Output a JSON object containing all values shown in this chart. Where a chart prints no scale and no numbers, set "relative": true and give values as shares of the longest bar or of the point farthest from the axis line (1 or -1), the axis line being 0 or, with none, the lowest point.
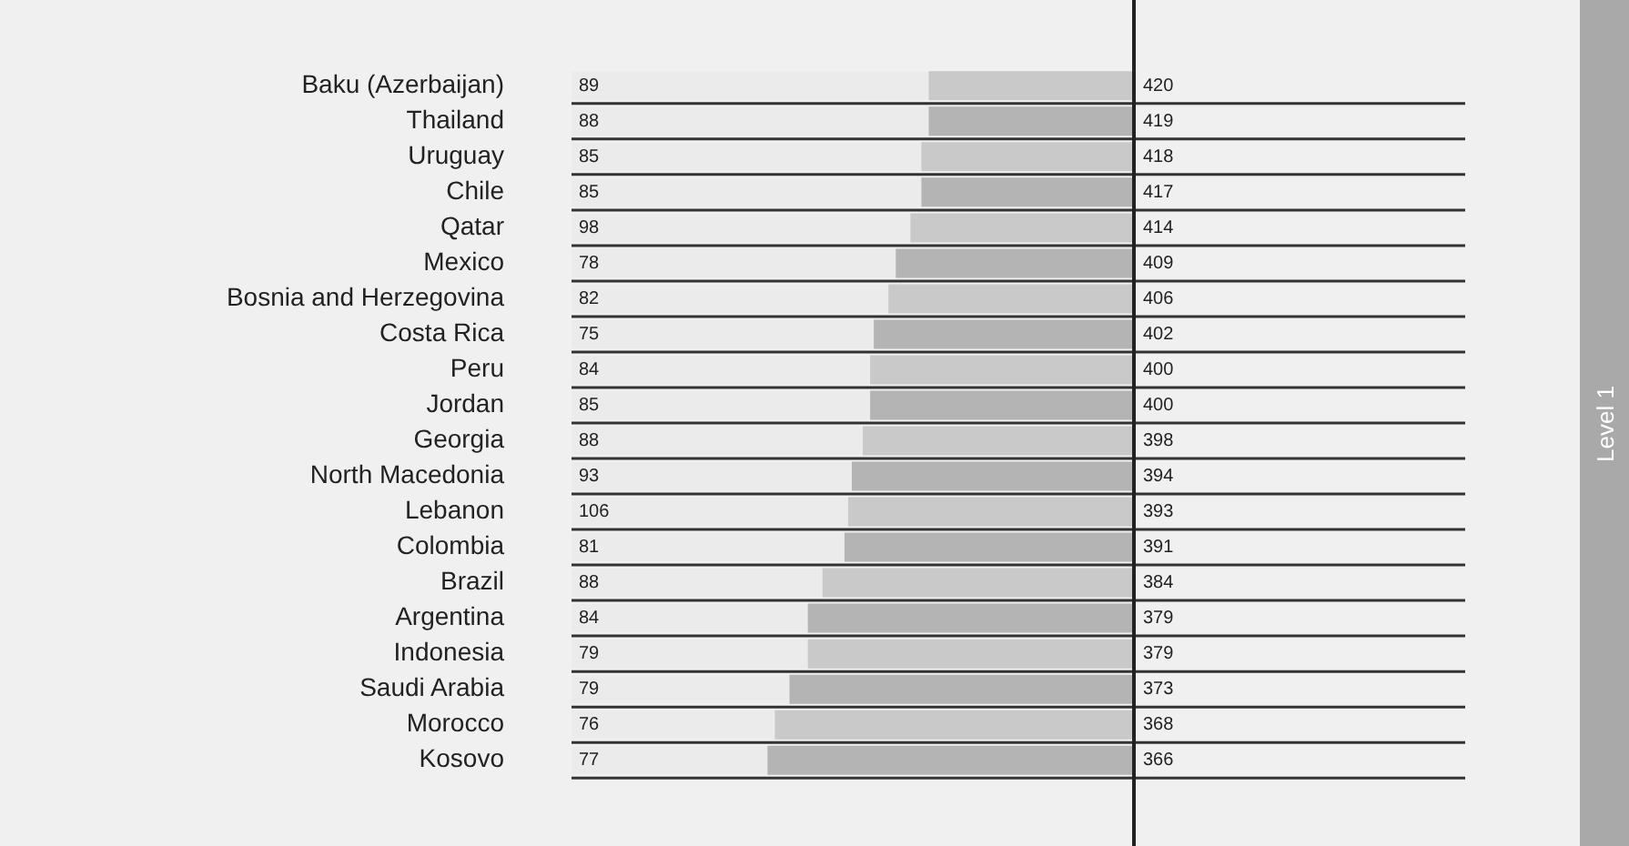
{
  "chart_data": {
    "type": "bar",
    "orientation": "horizontal",
    "relative": true,
    "categories": [
      "Baku (Azerbaijan)",
      "Thailand",
      "Uruguay",
      "Chile",
      "Qatar",
      "Mexico",
      "Bosnia and Herzegovina",
      "Costa Rica",
      "Peru",
      "Jordan",
      "Georgia",
      "North Macedonia",
      "Lebanon",
      "Colombia",
      "Brazil",
      "Argentina",
      "Indonesia",
      "Saudi Arabia",
      "Morocco",
      "Kosovo"
    ],
    "values": [
      -0.56,
      -0.56,
      -0.58,
      -0.58,
      -0.61,
      -0.65,
      -0.67,
      -0.71,
      -0.72,
      -0.72,
      -0.74,
      -0.77,
      -0.78,
      -0.79,
      -0.85,
      -0.89,
      -0.89,
      -0.94,
      -0.98,
      -1
    ],
    "colors": [
      "#c9c9c9",
      "#b4b4b4",
      "#c9c9c9",
      "#b4b4b4",
      "#c9c9c9",
      "#b4b4b4",
      "#c9c9c9",
      "#b4b4b4",
      "#c9c9c9",
      "#b4b4b4",
      "#c9c9c9",
      "#b4b4b4",
      "#c9c9c9",
      "#b4b4b4",
      "#c9c9c9",
      "#b4b4b4",
      "#c9c9c9",
      "#b4b4b4",
      "#c9c9c9",
      "#b4b4b4"
    ],
    "annotations": [
      "89",
      "88",
      "85",
      "85",
      "98",
      "78",
      "82",
      "75",
      "84",
      "85",
      "88",
      "93",
      "106",
      "81",
      "88",
      "84",
      "79",
      "79",
      "76",
      "77",
      "420",
      "419",
      "418",
      "417",
      "414",
      "409",
      "406",
      "402",
      "400",
      "400",
      "398",
      "394",
      "393",
      "391",
      "384",
      "379",
      "379",
      "373",
      "368",
      "366",
      "Level 1"
    ]
  }
}
